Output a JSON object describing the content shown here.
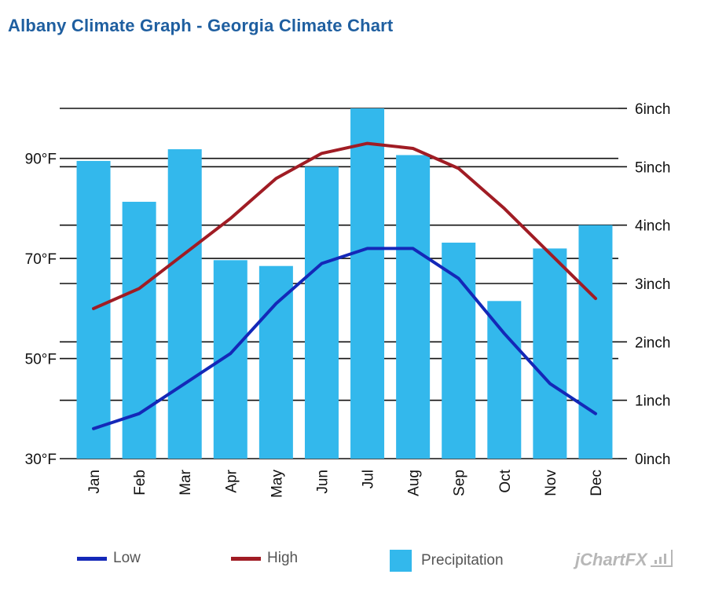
{
  "title": "Albany Climate Graph - Georgia Climate Chart",
  "chart_data": {
    "type": "bar",
    "categories": [
      "Jan",
      "Feb",
      "Mar",
      "Apr",
      "May",
      "Jun",
      "Jul",
      "Aug",
      "Sep",
      "Oct",
      "Nov",
      "Dec"
    ],
    "series": [
      {
        "name": "Precipitation",
        "kind": "bar",
        "axis": "right",
        "unit": "inch",
        "color": "#33b8ec",
        "values": [
          5.1,
          4.4,
          5.3,
          3.4,
          3.3,
          5.0,
          6.0,
          5.2,
          3.7,
          2.7,
          3.6,
          4.0
        ]
      },
      {
        "name": "Low",
        "kind": "line",
        "axis": "left",
        "unit": "°F",
        "color": "#1428b8",
        "values": [
          36,
          39,
          45,
          51,
          61,
          69,
          72,
          72,
          66,
          55,
          45,
          39
        ]
      },
      {
        "name": "High",
        "kind": "line",
        "axis": "left",
        "unit": "°F",
        "color": "#a01c24",
        "values": [
          60,
          64,
          71,
          78,
          86,
          91,
          93,
          92,
          88,
          80,
          71,
          62
        ]
      }
    ],
    "y_left": {
      "min": 30,
      "max": 100,
      "ticks": [
        30,
        50,
        70,
        90
      ],
      "tick_labels": [
        "30°F",
        "50°F",
        "70°F",
        "90°F"
      ]
    },
    "y_right": {
      "min": 0,
      "max": 6,
      "ticks": [
        0,
        1,
        2,
        3,
        4,
        5,
        6
      ],
      "tick_labels": [
        "0inch",
        "1inch",
        "2inch",
        "3inch",
        "4inch",
        "5inch",
        "6inch"
      ]
    },
    "grid": true,
    "legend_position": "bottom"
  },
  "legend": [
    {
      "label": "Low",
      "color": "#1428b8",
      "kind": "line"
    },
    {
      "label": "High",
      "color": "#a01c24",
      "kind": "line"
    },
    {
      "label": "Precipitation",
      "color": "#33b8ec",
      "kind": "box"
    }
  ],
  "brand": "jChartFX"
}
